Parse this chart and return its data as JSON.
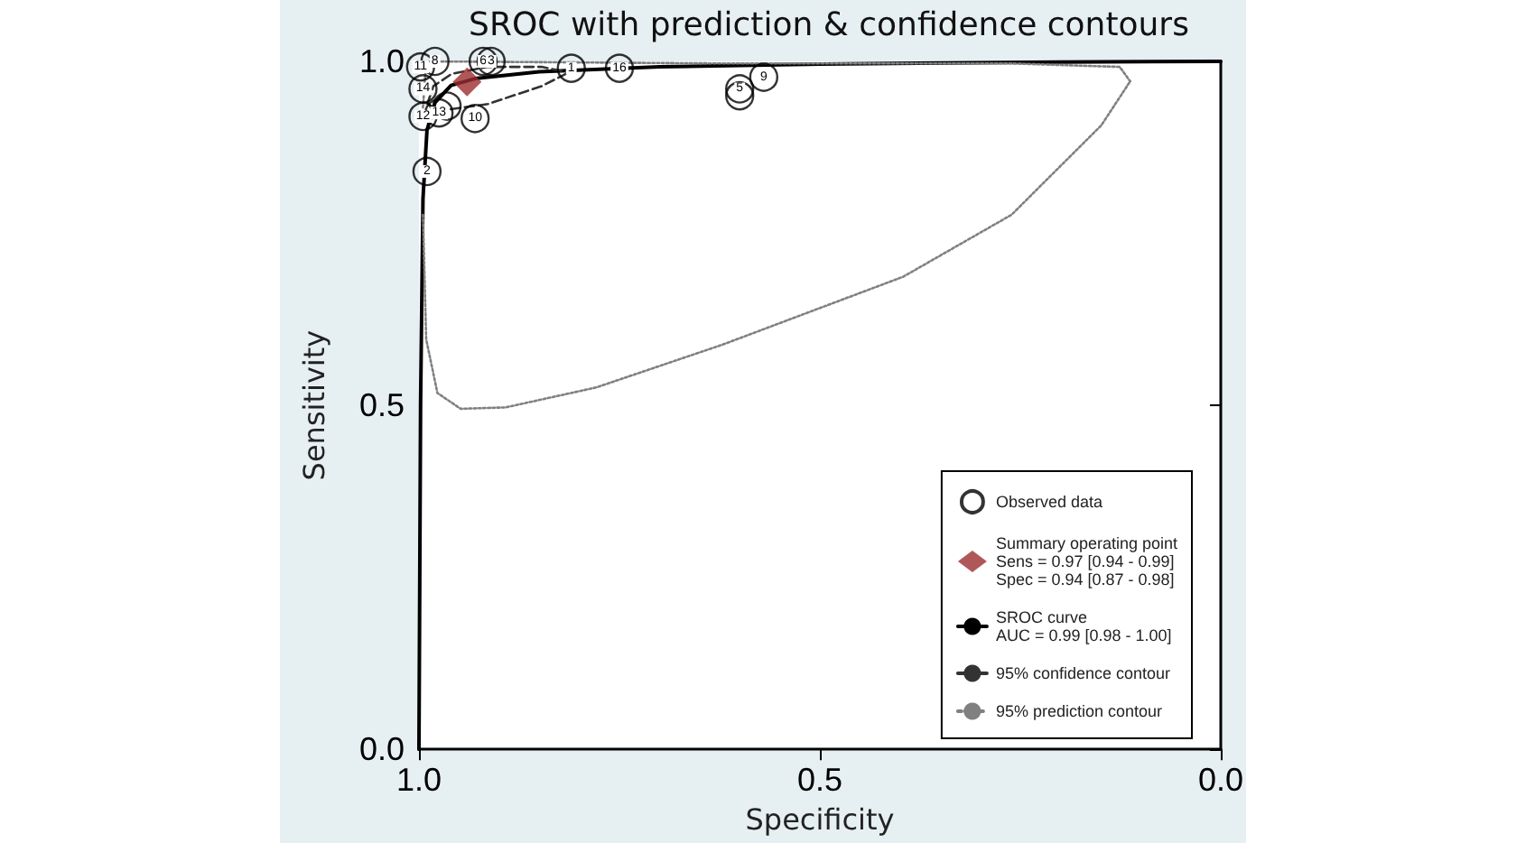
{
  "chart_data": {
    "type": "scatter",
    "title": "SROC with prediction & confidence contours",
    "xlabel": "Specificity",
    "ylabel": "Sensitivity",
    "xlim": [
      1.0,
      0.0
    ],
    "xticks": [
      {
        "value": 1.0,
        "label": "1.0"
      },
      {
        "value": 0.5,
        "label": "0.5"
      },
      {
        "value": 0.0,
        "label": "0.0"
      }
    ],
    "ylim": [
      0.0,
      1.0
    ],
    "yticks": [
      {
        "value": 0.0,
        "label": "0.0"
      },
      {
        "value": 0.5,
        "label": "0.5"
      },
      {
        "value": 1.0,
        "label": "1.0"
      }
    ],
    "grid": false,
    "legend": "bottom right",
    "annotations": [
      {
        "text": "11",
        "x": 0.998,
        "y": 0.992
      },
      {
        "text": "8",
        "x": 0.98,
        "y": 1.0
      },
      {
        "text": "6",
        "x": 0.92,
        "y": 1.0
      },
      {
        "text": "3",
        "x": 0.91,
        "y": 1.0
      },
      {
        "text": "1",
        "x": 0.81,
        "y": 0.99
      },
      {
        "text": "16",
        "x": 0.75,
        "y": 0.99
      },
      {
        "text": "14",
        "x": 0.995,
        "y": 0.96
      },
      {
        "text": "12",
        "x": 0.995,
        "y": 0.92
      },
      {
        "text": "13",
        "x": 0.975,
        "y": 0.925
      },
      {
        "text": "10",
        "x": 0.93,
        "y": 0.917
      },
      {
        "text": "2",
        "x": 0.99,
        "y": 0.84
      },
      {
        "text": "5",
        "x": 0.6,
        "y": 0.96
      },
      {
        "text": "9",
        "x": 0.57,
        "y": 0.977
      }
    ],
    "series": [
      {
        "name": "Observed data",
        "marker": "circle",
        "color": "#000000",
        "x": [
          0.998,
          0.98,
          0.92,
          0.91,
          0.81,
          0.75,
          0.995,
          0.995,
          0.975,
          0.965,
          0.93,
          0.99,
          0.6,
          0.6,
          0.57
        ],
        "values": [
          0.992,
          1.0,
          1.0,
          1.0,
          0.99,
          0.99,
          0.96,
          0.92,
          0.925,
          0.935,
          0.917,
          0.84,
          0.96,
          0.95,
          0.977
        ]
      },
      {
        "name": "Summary operating point\nSens = 0.97 [0.94 - 0.99]\nSpec = 0.94 [0.87 - 0.98]",
        "marker": "diamond",
        "color": "#9b2d30",
        "x": [
          0.94
        ],
        "values": [
          0.97
        ]
      },
      {
        "name": "SROC curve\nAUC = 0.99 [0.98 - 1.00]",
        "type": "line",
        "line_style": "solid",
        "color": "#000000",
        "x": [
          1.0,
          0.998,
          0.995,
          0.99,
          0.98,
          0.96,
          0.93,
          0.85,
          0.7,
          0.5,
          0.2,
          0.0
        ],
        "values": [
          0.0,
          0.5,
          0.8,
          0.9,
          0.94,
          0.965,
          0.975,
          0.985,
          0.992,
          0.996,
          0.999,
          1.0
        ]
      },
      {
        "name": "95% confidence contour",
        "type": "line",
        "line_style": "dashed",
        "color": "#333333",
        "x": [
          0.989,
          0.982,
          0.914,
          0.847,
          0.813
        ],
        "values": [
          0.94,
          0.927,
          0.938,
          0.964,
          0.984
        ]
      },
      {
        "type": "line",
        "line_style": "dashed",
        "color": "#333333",
        "x": [
          0.989,
          0.982,
          0.959,
          0.914,
          0.847,
          0.813
        ],
        "values": [
          0.94,
          0.964,
          0.982,
          0.992,
          0.992,
          0.984
        ]
      },
      {
        "name": "95% prediction contour",
        "type": "line",
        "line_style": "dotted",
        "color": "#808080",
        "x": [
          0.995,
          0.991,
          0.622,
          0.261,
          0.126,
          0.113
        ],
        "values": [
          0.933,
          1.0,
          0.997,
          0.997,
          0.992,
          0.971
        ]
      },
      {
        "type": "line",
        "line_style": "dotted",
        "color": "#808080",
        "x": [
          0.995,
          0.991,
          0.977,
          0.948,
          0.892,
          0.779,
          0.622,
          0.396,
          0.261,
          0.149,
          0.113
        ],
        "values": [
          0.777,
          0.596,
          0.518,
          0.495,
          0.497,
          0.526,
          0.588,
          0.687,
          0.777,
          0.907,
          0.971
        ]
      }
    ]
  }
}
